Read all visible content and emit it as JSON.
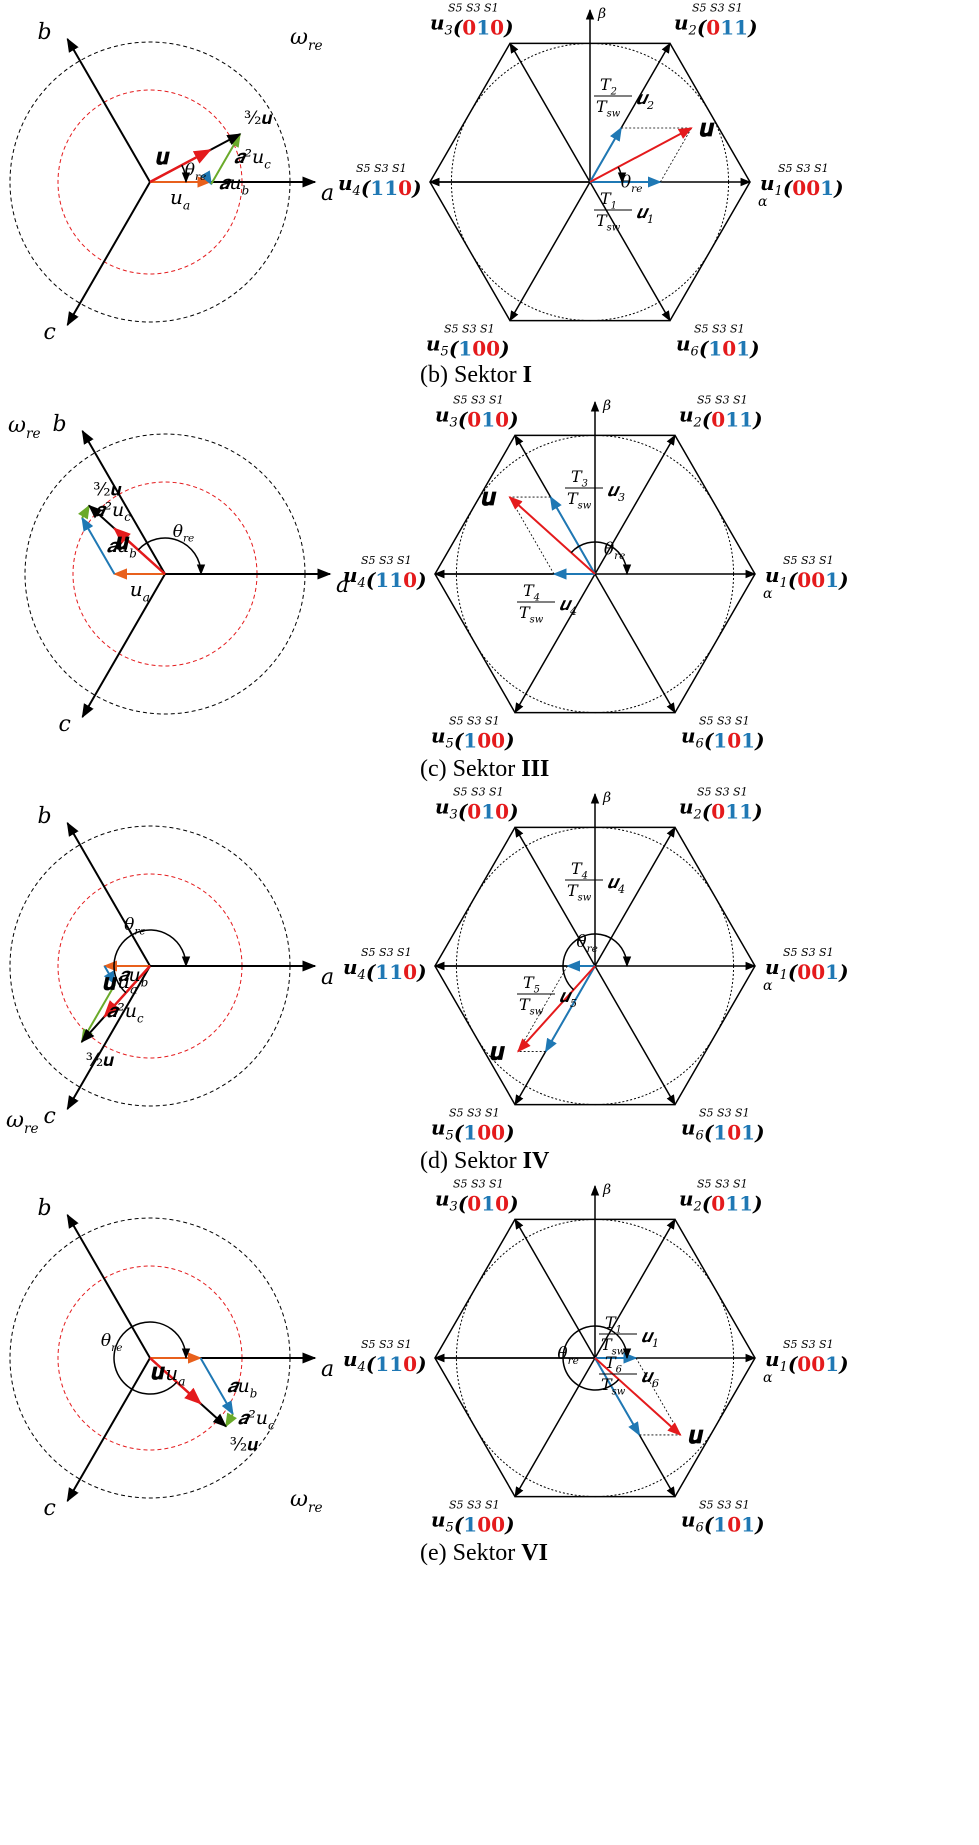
{
  "colors": {
    "black": "#000000",
    "red": "#e41a1c",
    "blue": "#1f78b4",
    "green": "#6aaa2a",
    "orange": "#e8601c",
    "red_dashed": "#e41a1c",
    "bit_red": "#e41a1c",
    "bit_blue": "#1f78b4"
  },
  "labels": {
    "axis_a": "a",
    "axis_b": "b",
    "axis_c": "c",
    "alpha": "α",
    "beta": "β",
    "omega_re": "ωre",
    "theta_re": "θre",
    "u": "u",
    "ua": "ua",
    "aub": "aub",
    "a2uc": "a²uc",
    "three_halves_u": "3/2 u",
    "switch_header": "S5 S3 S1"
  },
  "vectors": [
    {
      "id": "u1",
      "name": "u1",
      "code": "001",
      "angle_deg": 0
    },
    {
      "id": "u2",
      "name": "u2",
      "code": "011",
      "angle_deg": 60
    },
    {
      "id": "u3",
      "name": "u3",
      "code": "010",
      "angle_deg": 120
    },
    {
      "id": "u4",
      "name": "u4",
      "code": "110",
      "angle_deg": 180
    },
    {
      "id": "u5",
      "name": "u5",
      "code": "100",
      "angle_deg": 240
    },
    {
      "id": "u6",
      "name": "u6",
      "code": "101",
      "angle_deg": 300
    }
  ],
  "panels": [
    {
      "id": "b",
      "caption_prefix": "(b)  Sektor ",
      "caption_numeral": "I",
      "theta_deg": 28,
      "omega_side": "top",
      "t_labels": [
        {
          "T": "T2",
          "u": "u2"
        },
        {
          "T": "T1",
          "u": "u1"
        }
      ]
    },
    {
      "id": "c",
      "caption_prefix": "(c)  Sektor ",
      "caption_numeral": "III",
      "theta_deg": 138,
      "omega_side": "left",
      "t_labels": [
        {
          "T": "T3",
          "u": "u3"
        },
        {
          "T": "T4",
          "u": "u4"
        }
      ]
    },
    {
      "id": "d",
      "caption_prefix": "(d)  Sektor ",
      "caption_numeral": "IV",
      "theta_deg": 228,
      "omega_side": "bottom-left",
      "t_labels": [
        {
          "T": "T4",
          "u": "u4"
        },
        {
          "T": "T5",
          "u": "u5"
        }
      ]
    },
    {
      "id": "e",
      "caption_prefix": "(e)  Sektor ",
      "caption_numeral": "VI",
      "theta_deg": 318,
      "omega_side": "bottom-right",
      "t_labels": [
        {
          "T": "T1",
          "u": "u1"
        },
        {
          "T": "T6",
          "u": "u6"
        }
      ]
    }
  ]
}
